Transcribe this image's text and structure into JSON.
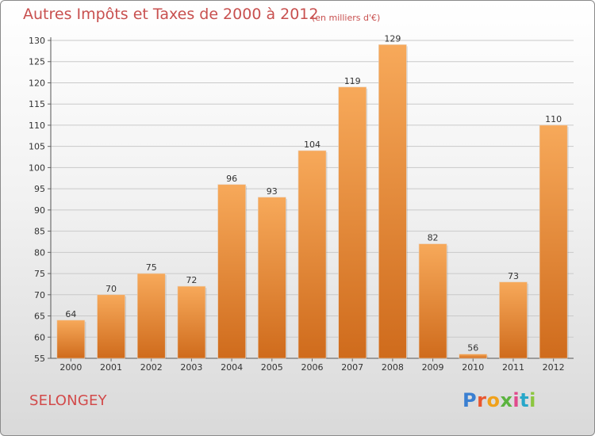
{
  "header": {
    "title": "Autres Impôts et Taxes de 2000 à 2012",
    "unit": "(en milliers d'€)"
  },
  "footer": {
    "city": "SELONGEY",
    "logo": {
      "text": "Proxiti",
      "letters": [
        "P",
        "r",
        "o",
        "x",
        "i",
        "t",
        "i"
      ]
    }
  },
  "colors": {
    "bar_top": "#f7a95a",
    "bar_bottom": "#cf6b1c",
    "title": "#c8504f",
    "grid": "#c9c9c9"
  },
  "chart_data": {
    "type": "bar",
    "title": "Autres Impôts et Taxes de 2000 à 2012",
    "subtitle": "(en milliers d'€)",
    "xlabel": "",
    "ylabel": "",
    "categories": [
      "2000",
      "2001",
      "2002",
      "2003",
      "2004",
      "2005",
      "2006",
      "2007",
      "2008",
      "2009",
      "2010",
      "2011",
      "2012"
    ],
    "values": [
      64,
      70,
      75,
      72,
      96,
      93,
      104,
      119,
      129,
      82,
      56,
      73,
      110
    ],
    "ylim": [
      55,
      130
    ],
    "yticks": [
      55,
      60,
      65,
      70,
      75,
      80,
      85,
      90,
      95,
      100,
      105,
      110,
      115,
      120,
      125,
      130
    ],
    "grid": true,
    "legend": "none"
  }
}
